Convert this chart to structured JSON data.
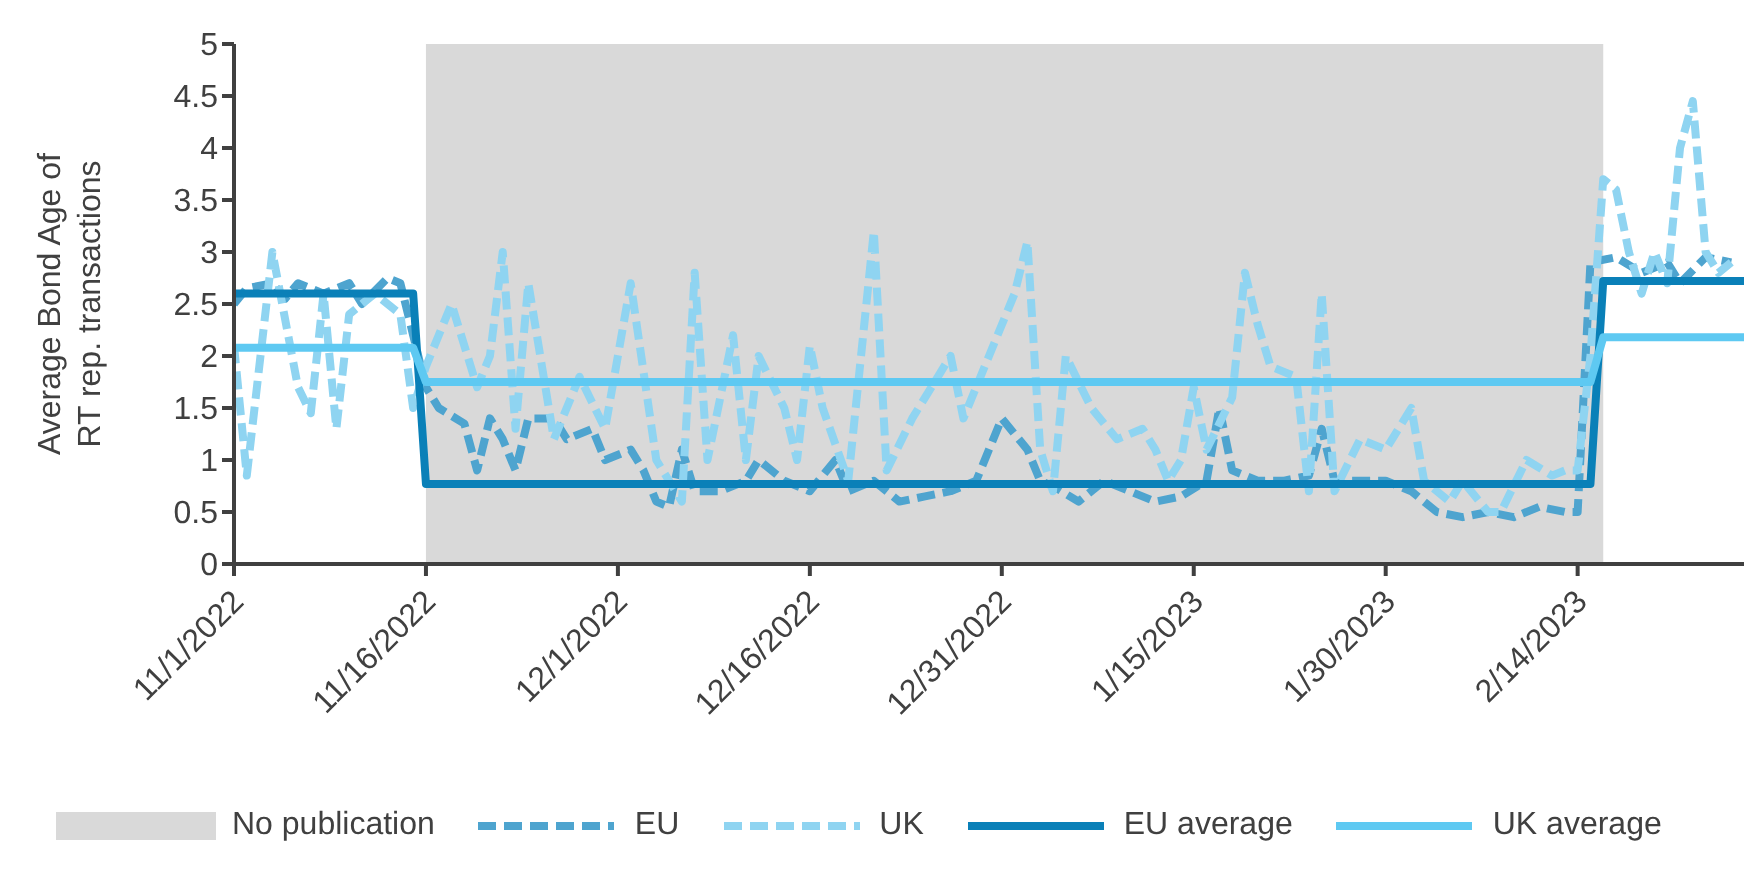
{
  "chart_data": {
    "type": "line",
    "ylabel": "Average Bond Age of RT rep. transactions",
    "xlim": [
      "2022-11-01",
      "2023-02-27"
    ],
    "xticks": [
      {
        "value": "2022-11-01",
        "label": "11/1/2022"
      },
      {
        "value": "2022-11-16",
        "label": "11/16/2022"
      },
      {
        "value": "2022-12-01",
        "label": "12/1/2022"
      },
      {
        "value": "2022-12-16",
        "label": "12/16/2022"
      },
      {
        "value": "2022-12-31",
        "label": "12/31/2022"
      },
      {
        "value": "2023-01-15",
        "label": "1/15/2023"
      },
      {
        "value": "2023-01-30",
        "label": "1/30/2023"
      },
      {
        "value": "2023-02-14",
        "label": "2/14/2023"
      }
    ],
    "ylim": [
      0,
      5
    ],
    "yticks": [
      0,
      0.5,
      1,
      1.5,
      2,
      2.5,
      3,
      3.5,
      4,
      4.5,
      5
    ],
    "grid": false,
    "legend": "bottom",
    "marker": "none",
    "bands": [
      {
        "axis": "x",
        "from": "2022-11-16",
        "to": "2023-02-16",
        "label": "No publication",
        "color": "#d9d9d9"
      }
    ],
    "series": [
      {
        "name": "EU",
        "color": "#4ea4cf",
        "line_style": "dashed",
        "x": [
          "2022-11-01",
          "2022-11-02",
          "2022-11-04",
          "2022-11-05",
          "2022-11-06",
          "2022-11-08",
          "2022-11-10",
          "2022-11-11",
          "2022-11-13",
          "2022-11-14",
          "2022-11-15",
          "2022-11-16",
          "2022-11-17",
          "2022-11-19",
          "2022-11-20",
          "2022-11-21",
          "2022-11-22",
          "2022-11-23",
          "2022-11-24",
          "2022-11-26",
          "2022-11-27",
          "2022-11-29",
          "2022-11-30",
          "2022-12-02",
          "2022-12-03",
          "2022-12-04",
          "2022-12-05",
          "2022-12-06",
          "2022-12-07",
          "2022-12-09",
          "2022-12-11",
          "2022-12-12",
          "2022-12-14",
          "2022-12-16",
          "2022-12-18",
          "2022-12-19",
          "2022-12-21",
          "2022-12-23",
          "2022-12-25",
          "2022-12-27",
          "2022-12-29",
          "2022-12-30",
          "2022-12-31",
          "2023-01-02",
          "2023-01-03",
          "2023-01-04",
          "2023-01-06",
          "2023-01-08",
          "2023-01-10",
          "2023-01-12",
          "2023-01-14",
          "2023-01-16",
          "2023-01-17",
          "2023-01-18",
          "2023-01-20",
          "2023-01-22",
          "2023-01-24",
          "2023-01-25",
          "2023-01-26",
          "2023-01-28",
          "2023-01-30",
          "2023-02-01",
          "2023-02-03",
          "2023-02-05",
          "2023-02-07",
          "2023-02-09",
          "2023-02-11",
          "2023-02-13",
          "2023-02-14",
          "2023-02-15",
          "2023-02-17",
          "2023-02-19",
          "2023-02-21",
          "2023-02-22",
          "2023-02-24",
          "2023-02-26"
        ],
        "values": [
          2.5,
          2.65,
          2.7,
          2.55,
          2.7,
          2.6,
          2.7,
          2.5,
          2.75,
          2.7,
          2.2,
          1.7,
          1.5,
          1.35,
          0.9,
          1.4,
          1.2,
          0.9,
          1.4,
          1.4,
          1.2,
          1.3,
          1.0,
          1.1,
          0.9,
          0.6,
          0.55,
          1.1,
          0.7,
          0.7,
          0.8,
          1.0,
          0.8,
          0.7,
          1.0,
          0.7,
          0.8,
          0.6,
          0.65,
          0.7,
          0.8,
          1.1,
          1.4,
          1.1,
          0.8,
          0.75,
          0.6,
          0.8,
          0.7,
          0.6,
          0.65,
          0.8,
          1.5,
          0.9,
          0.8,
          0.8,
          0.85,
          1.3,
          0.8,
          0.8,
          0.8,
          0.7,
          0.5,
          0.45,
          0.5,
          0.45,
          0.55,
          0.5,
          0.5,
          2.9,
          2.95,
          2.8,
          2.9,
          2.7,
          2.95,
          2.9
        ]
      },
      {
        "name": "UK",
        "color": "#8fd4f1",
        "line_style": "dashed",
        "x": [
          "2022-11-01",
          "2022-11-02",
          "2022-11-04",
          "2022-11-06",
          "2022-11-07",
          "2022-11-08",
          "2022-11-09",
          "2022-11-10",
          "2022-11-12",
          "2022-11-14",
          "2022-11-15",
          "2022-11-16",
          "2022-11-18",
          "2022-11-20",
          "2022-11-21",
          "2022-11-22",
          "2022-11-23",
          "2022-11-24",
          "2022-11-26",
          "2022-11-28",
          "2022-11-30",
          "2022-12-02",
          "2022-12-04",
          "2022-12-06",
          "2022-12-07",
          "2022-12-08",
          "2022-12-10",
          "2022-12-11",
          "2022-12-12",
          "2022-12-14",
          "2022-12-15",
          "2022-12-16",
          "2022-12-17",
          "2022-12-19",
          "2022-12-21",
          "2022-12-22",
          "2022-12-24",
          "2022-12-26",
          "2022-12-27",
          "2022-12-28",
          "2022-12-30",
          "2023-01-01",
          "2023-01-02",
          "2023-01-03",
          "2023-01-04",
          "2023-01-05",
          "2023-01-07",
          "2023-01-09",
          "2023-01-11",
          "2023-01-12",
          "2023-01-13",
          "2023-01-14",
          "2023-01-15",
          "2023-01-16",
          "2023-01-18",
          "2023-01-19",
          "2023-01-20",
          "2023-01-21",
          "2023-01-23",
          "2023-01-24",
          "2023-01-25",
          "2023-01-26",
          "2023-01-28",
          "2023-01-30",
          "2023-02-01",
          "2023-02-02",
          "2023-02-04",
          "2023-02-05",
          "2023-02-07",
          "2023-02-08",
          "2023-02-10",
          "2023-02-12",
          "2023-02-13",
          "2023-02-14",
          "2023-02-15",
          "2023-02-16",
          "2023-02-17",
          "2023-02-18",
          "2023-02-19",
          "2023-02-20",
          "2023-02-21",
          "2023-02-22",
          "2023-02-23",
          "2023-02-24",
          "2023-02-25",
          "2023-02-26"
        ],
        "values": [
          2.1,
          0.85,
          3.0,
          1.7,
          1.45,
          2.6,
          1.3,
          2.4,
          2.6,
          2.4,
          1.5,
          1.9,
          2.5,
          1.7,
          2.0,
          3.0,
          1.3,
          2.7,
          1.2,
          1.8,
          1.3,
          2.7,
          1.0,
          0.6,
          2.8,
          1.0,
          2.2,
          1.0,
          2.0,
          1.5,
          1.0,
          2.1,
          1.5,
          0.8,
          3.2,
          0.9,
          1.4,
          1.8,
          2.0,
          1.4,
          2.0,
          2.6,
          3.1,
          1.1,
          0.7,
          2.0,
          1.5,
          1.2,
          1.3,
          1.1,
          0.8,
          1.0,
          1.7,
          1.1,
          1.6,
          2.8,
          2.3,
          1.9,
          1.8,
          0.7,
          2.6,
          0.7,
          1.2,
          1.1,
          1.5,
          0.8,
          0.6,
          0.8,
          0.5,
          0.5,
          1.0,
          0.85,
          0.9,
          0.9,
          2.0,
          3.7,
          3.6,
          3.0,
          2.6,
          3.0,
          2.7,
          4.0,
          4.45,
          3.0,
          2.8,
          2.9
        ]
      },
      {
        "name": "EU average",
        "color": "#0a80b8",
        "line_style": "solid",
        "x": [
          "2022-11-01",
          "2022-11-15",
          "2022-11-16",
          "2023-02-15",
          "2023-02-16",
          "2023-02-27"
        ],
        "values": [
          2.6,
          2.6,
          0.77,
          0.77,
          2.72,
          2.72
        ]
      },
      {
        "name": "UK average",
        "color": "#5ec9f2",
        "line_style": "solid",
        "x": [
          "2022-11-01",
          "2022-11-15",
          "2022-11-16",
          "2023-02-15",
          "2023-02-16",
          "2023-02-27"
        ],
        "values": [
          2.08,
          2.08,
          1.75,
          1.75,
          2.18,
          2.18
        ]
      }
    ]
  }
}
